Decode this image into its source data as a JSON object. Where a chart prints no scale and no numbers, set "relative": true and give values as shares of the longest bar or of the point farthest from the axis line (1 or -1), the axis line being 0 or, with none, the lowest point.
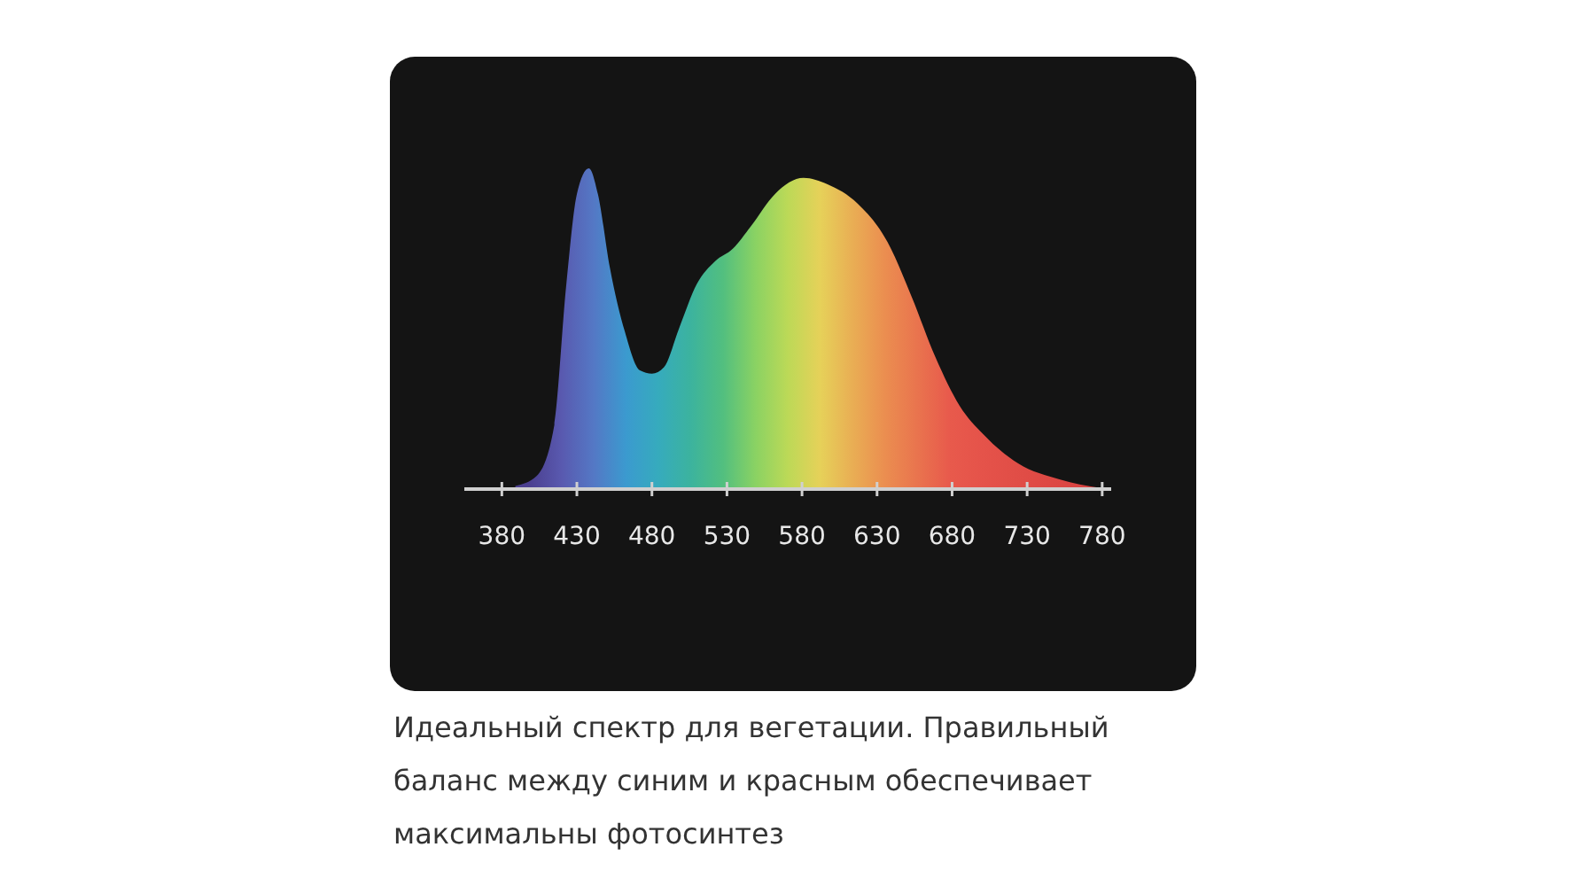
{
  "chart_data": {
    "type": "area",
    "relative": true,
    "x": [
      389,
      403,
      415,
      423,
      430,
      438,
      444,
      452,
      462,
      472,
      480,
      488,
      498,
      510,
      522,
      534,
      546,
      562,
      581,
      597,
      617,
      637,
      653,
      669,
      685,
      701,
      724,
      752,
      778
    ],
    "values": [
      0.01,
      0.04,
      0.2,
      0.64,
      0.92,
      1.0,
      0.92,
      0.69,
      0.49,
      0.37,
      0.36,
      0.38,
      0.5,
      0.64,
      0.71,
      0.75,
      0.82,
      0.92,
      0.97,
      0.95,
      0.89,
      0.77,
      0.6,
      0.41,
      0.26,
      0.17,
      0.08,
      0.03,
      0.004
    ],
    "xlim": [
      355,
      786
    ],
    "xticks": [
      380,
      430,
      480,
      530,
      580,
      630,
      680,
      730,
      780
    ],
    "annotations": [
      "Идеальный спектр для вегетации. Правильный баланс между синим и красным обеспечивает максимальны фотосинтез"
    ]
  }
}
